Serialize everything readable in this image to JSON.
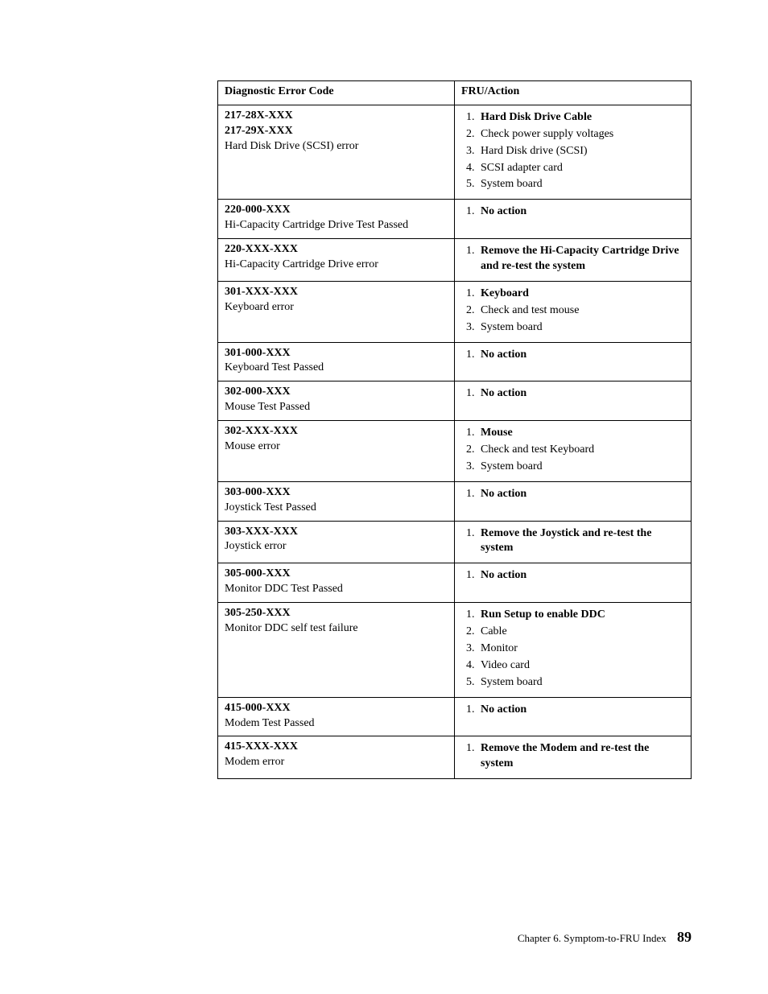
{
  "table": {
    "headers": {
      "code": "Diagnostic Error Code",
      "action": "FRU/Action"
    },
    "rows": [
      {
        "codes": [
          "217-28X-XXX",
          "217-29X-XXX"
        ],
        "desc": "Hard Disk Drive (SCSI) error",
        "actions": [
          {
            "text": "Hard Disk Drive Cable",
            "bold": true
          },
          {
            "text": "Check power supply voltages",
            "bold": false
          },
          {
            "text": "Hard Disk drive (SCSI)",
            "bold": false
          },
          {
            "text": "SCSI adapter card",
            "bold": false
          },
          {
            "text": "System board",
            "bold": false
          }
        ]
      },
      {
        "codes": [
          "220-000-XXX"
        ],
        "desc": "Hi-Capacity Cartridge Drive Test Passed",
        "actions": [
          {
            "text": "No action",
            "bold": true
          }
        ]
      },
      {
        "codes": [
          "220-XXX-XXX"
        ],
        "desc": "Hi-Capacity Cartridge Drive error",
        "actions": [
          {
            "text": "Remove the Hi-Capacity Cartridge Drive and re-test the system",
            "bold": true
          }
        ]
      },
      {
        "codes": [
          "301-XXX-XXX"
        ],
        "desc": "Keyboard error",
        "actions": [
          {
            "text": "Keyboard",
            "bold": true
          },
          {
            "text": "Check and test mouse",
            "bold": false
          },
          {
            "text": "System board",
            "bold": false
          }
        ]
      },
      {
        "codes": [
          "301-000-XXX"
        ],
        "desc": "Keyboard Test Passed",
        "actions": [
          {
            "text": "No action",
            "bold": true
          }
        ]
      },
      {
        "codes": [
          "302-000-XXX"
        ],
        "desc": "Mouse Test Passed",
        "actions": [
          {
            "text": "No action",
            "bold": true
          }
        ]
      },
      {
        "codes": [
          "302-XXX-XXX"
        ],
        "desc": "Mouse error",
        "actions": [
          {
            "text": "Mouse",
            "bold": true
          },
          {
            "text": "Check and test Keyboard",
            "bold": false
          },
          {
            "text": "System board",
            "bold": false
          }
        ]
      },
      {
        "codes": [
          "303-000-XXX"
        ],
        "desc": "Joystick Test Passed",
        "actions": [
          {
            "text": "No action",
            "bold": true
          }
        ]
      },
      {
        "codes": [
          "303-XXX-XXX"
        ],
        "desc": "Joystick error",
        "actions": [
          {
            "text": "Remove the Joystick and re-test the system",
            "bold": true
          }
        ]
      },
      {
        "codes": [
          "305-000-XXX"
        ],
        "desc": "Monitor DDC Test Passed",
        "actions": [
          {
            "text": "No action",
            "bold": true
          }
        ]
      },
      {
        "codes": [
          "305-250-XXX"
        ],
        "desc": "Monitor DDC self test failure",
        "actions": [
          {
            "text": "Run Setup to enable DDC",
            "bold": true
          },
          {
            "text": "Cable",
            "bold": false
          },
          {
            "text": "Monitor",
            "bold": false
          },
          {
            "text": "Video card",
            "bold": false
          },
          {
            "text": "System board",
            "bold": false
          }
        ]
      },
      {
        "codes": [
          "415-000-XXX"
        ],
        "desc": "Modem Test Passed",
        "actions": [
          {
            "text": "No action",
            "bold": true
          }
        ]
      },
      {
        "codes": [
          "415-XXX-XXX"
        ],
        "desc": "Modem error",
        "actions": [
          {
            "text": "Remove the Modem and re-test the system",
            "bold": true
          }
        ]
      }
    ]
  },
  "footer": {
    "chapter": "Chapter 6. Symptom-to-FRU Index",
    "page": "89"
  }
}
